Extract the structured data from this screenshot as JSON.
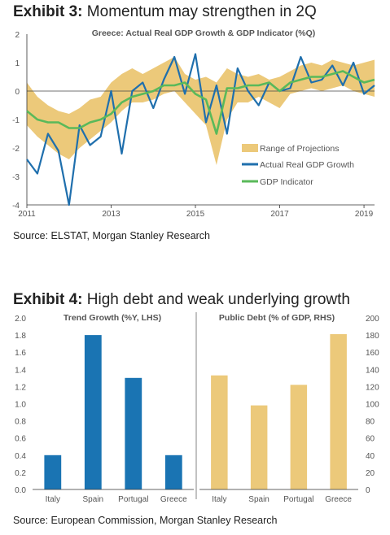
{
  "exhibit3": {
    "label": "Exhibit 3:",
    "title": "Momentum may strengthen in 2Q",
    "source": "Source: ELSTAT, Morgan Stanley Research"
  },
  "exhibit4": {
    "label": "Exhibit 4:",
    "title": "High debt and weak underlying growth",
    "source": "Source: European Commission, Morgan Stanley Research"
  },
  "chart_data": [
    {
      "type": "line",
      "title": "Greece: Actual Real GDP Growth & GDP Indicator (%Q)",
      "xlabel": "",
      "ylabel": "",
      "xlim": [
        2011,
        2019.25
      ],
      "ylim": [
        -4,
        2
      ],
      "yticks": [
        2,
        1,
        0,
        -1,
        -2,
        -3,
        -4
      ],
      "xticks": [
        "2011",
        "2013",
        "2015",
        "2017",
        "2019"
      ],
      "legend_position": "lower-right",
      "grid": false,
      "band": {
        "name": "Range of Projections",
        "color": "#ecc97a",
        "x": [
          2011.0,
          2011.25,
          2011.5,
          2011.75,
          2012.0,
          2012.25,
          2012.5,
          2012.75,
          2013.0,
          2013.25,
          2013.5,
          2013.75,
          2014.0,
          2014.25,
          2014.5,
          2014.75,
          2015.0,
          2015.25,
          2015.5,
          2015.75,
          2016.0,
          2016.25,
          2016.5,
          2016.75,
          2017.0,
          2017.25,
          2017.5,
          2017.75,
          2018.0,
          2018.25,
          2018.5,
          2018.75,
          2019.0,
          2019.25
        ],
        "upper": [
          0.3,
          -0.2,
          -0.5,
          -0.7,
          -0.8,
          -0.6,
          -0.3,
          -0.2,
          0.3,
          0.6,
          0.8,
          0.6,
          0.8,
          1.0,
          1.2,
          0.6,
          0.4,
          0.5,
          0.3,
          0.8,
          0.6,
          0.5,
          0.6,
          0.4,
          0.5,
          0.7,
          0.9,
          1.0,
          0.9,
          1.1,
          1.0,
          0.9,
          1.0,
          1.1
        ],
        "lower": [
          -1.2,
          -1.6,
          -1.9,
          -2.2,
          -2.4,
          -2.0,
          -1.7,
          -1.4,
          -1.1,
          -0.7,
          -0.4,
          -0.4,
          -0.3,
          -0.1,
          0.0,
          -0.4,
          -0.8,
          -1.2,
          -2.6,
          -1.0,
          -0.4,
          -0.4,
          -0.2,
          -0.4,
          -0.6,
          -0.1,
          0.0,
          0.1,
          0.0,
          0.1,
          0.2,
          0.0,
          -0.1,
          -0.2
        ]
      },
      "x": [
        2011.0,
        2011.25,
        2011.5,
        2011.75,
        2012.0,
        2012.25,
        2012.5,
        2012.75,
        2013.0,
        2013.25,
        2013.5,
        2013.75,
        2014.0,
        2014.25,
        2014.5,
        2014.75,
        2015.0,
        2015.25,
        2015.5,
        2015.75,
        2016.0,
        2016.25,
        2016.5,
        2016.75,
        2017.0,
        2017.25,
        2017.5,
        2017.75,
        2018.0,
        2018.25,
        2018.5,
        2018.75,
        2019.0,
        2019.25
      ],
      "series": [
        {
          "name": "Actual Real GDP Growth",
          "color": "#1f6fad",
          "values": [
            -2.4,
            -2.9,
            -1.5,
            -2.1,
            -4.0,
            -1.2,
            -1.9,
            -1.6,
            0.0,
            -2.2,
            0.0,
            0.3,
            -0.6,
            0.4,
            1.2,
            -0.1,
            1.3,
            -1.1,
            0.2,
            -1.5,
            0.8,
            0.0,
            -0.5,
            0.3,
            0.0,
            0.1,
            1.2,
            0.3,
            0.4,
            0.9,
            0.2,
            1.0,
            -0.1,
            0.2
          ]
        },
        {
          "name": "GDP Indicator",
          "color": "#5ab95a",
          "values": [
            -0.7,
            -1.0,
            -1.1,
            -1.1,
            -1.3,
            -1.3,
            -1.1,
            -1.0,
            -0.8,
            -0.4,
            -0.2,
            -0.1,
            0.0,
            0.2,
            0.2,
            0.3,
            -0.1,
            -0.3,
            -1.5,
            0.1,
            0.1,
            0.2,
            0.2,
            0.3,
            0.0,
            0.3,
            0.4,
            0.5,
            0.5,
            0.6,
            0.7,
            0.5,
            0.3,
            0.4
          ]
        }
      ]
    },
    {
      "type": "bar",
      "title": "Trend Growth (%Y, LHS)",
      "categories": [
        "Italy",
        "Spain",
        "Portugal",
        "Greece"
      ],
      "values": [
        0.4,
        1.8,
        1.3,
        0.4
      ],
      "ylim": [
        0.0,
        2.0
      ],
      "yticks": [
        "2.0",
        "1.8",
        "1.6",
        "1.4",
        "1.2",
        "1.0",
        "0.8",
        "0.6",
        "0.4",
        "0.2",
        "0.0"
      ],
      "color": "#1a74b3"
    },
    {
      "type": "bar",
      "title": "Public Debt (% of GDP, RHS)",
      "categories": [
        "Italy",
        "Spain",
        "Portugal",
        "Greece"
      ],
      "values": [
        133,
        98,
        122,
        181
      ],
      "ylim": [
        0,
        200
      ],
      "yticks": [
        "200",
        "180",
        "160",
        "140",
        "120",
        "100",
        "80",
        "60",
        "40",
        "20",
        "0"
      ],
      "color": "#ecc97a"
    }
  ]
}
